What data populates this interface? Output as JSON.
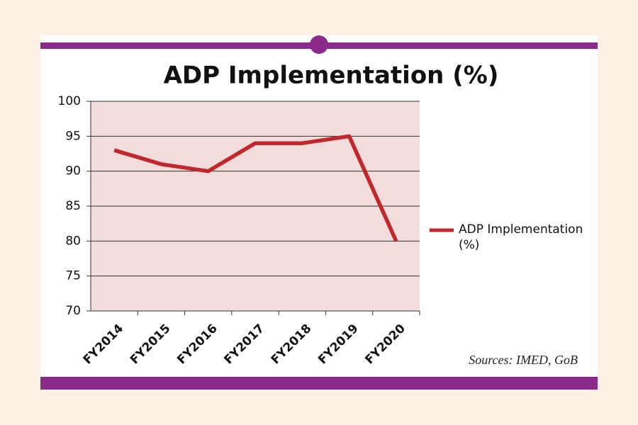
{
  "chart_data": {
    "type": "line",
    "title": "ADP Implementation (%)",
    "categories": [
      "FY2014",
      "FY2015",
      "FY2016",
      "FY2017",
      "FY2018",
      "FY2019",
      "FY2020"
    ],
    "series": [
      {
        "name": "ADP Implementation (%)",
        "color": "#c0282d",
        "values": [
          93,
          91,
          90,
          94,
          94,
          95,
          80
        ]
      }
    ],
    "ylim": [
      70,
      100
    ],
    "yticks": [
      70,
      75,
      80,
      85,
      90,
      95,
      100
    ],
    "grid": true,
    "plot_background": "#f3dcdc",
    "legend": "right",
    "source": "Sources: IMED, GoB"
  }
}
